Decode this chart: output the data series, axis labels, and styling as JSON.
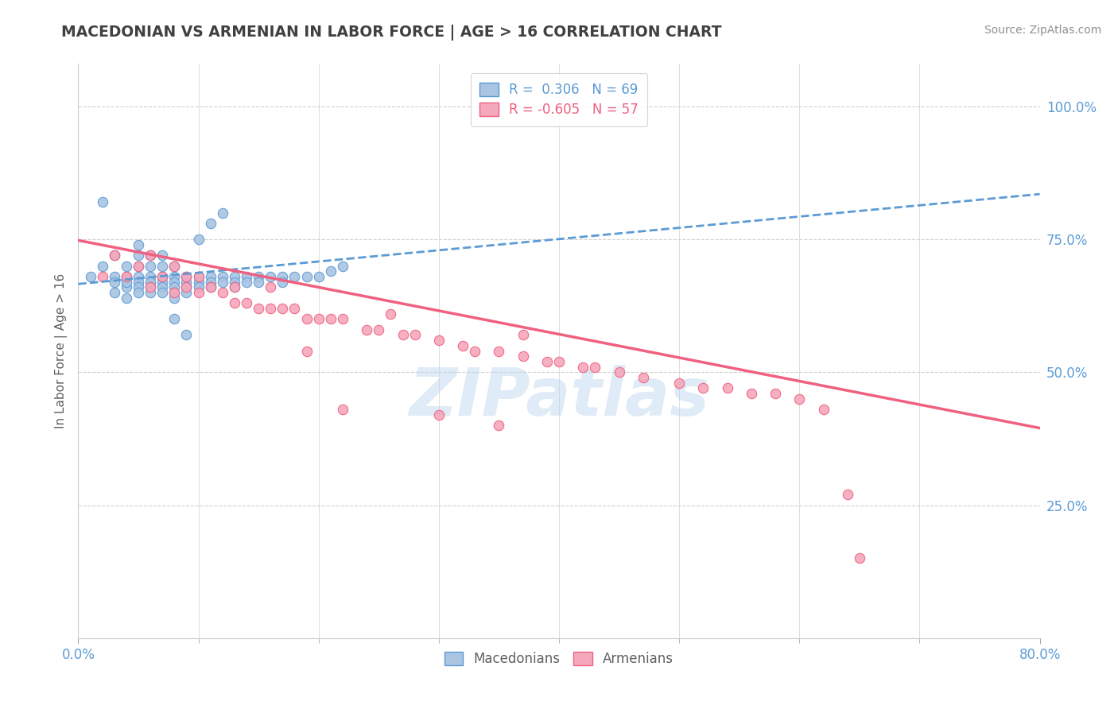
{
  "title": "MACEDONIAN VS ARMENIAN IN LABOR FORCE | AGE > 16 CORRELATION CHART",
  "source": "Source: ZipAtlas.com",
  "ylabel": "In Labor Force | Age > 16",
  "xlim": [
    0.0,
    0.8
  ],
  "ylim": [
    0.0,
    1.08
  ],
  "mac_color": "#aac4e2",
  "arm_color": "#f5a8bb",
  "mac_edge_color": "#5b9bd5",
  "arm_edge_color": "#f06080",
  "mac_line_color": "#5b9bd5",
  "arm_line_color": "#f06080",
  "watermark": "ZIPatlas",
  "background_color": "#ffffff",
  "grid_color": "#d0d0d0",
  "title_color": "#404040",
  "axis_label_color": "#5b9bd5",
  "mac_scatter_x": [
    0.01,
    0.02,
    0.02,
    0.03,
    0.03,
    0.03,
    0.03,
    0.04,
    0.04,
    0.04,
    0.04,
    0.04,
    0.05,
    0.05,
    0.05,
    0.05,
    0.05,
    0.05,
    0.05,
    0.06,
    0.06,
    0.06,
    0.06,
    0.06,
    0.06,
    0.07,
    0.07,
    0.07,
    0.07,
    0.07,
    0.07,
    0.08,
    0.08,
    0.08,
    0.08,
    0.08,
    0.08,
    0.09,
    0.09,
    0.09,
    0.09,
    0.1,
    0.1,
    0.1,
    0.1,
    0.11,
    0.11,
    0.11,
    0.11,
    0.12,
    0.12,
    0.12,
    0.13,
    0.13,
    0.13,
    0.14,
    0.14,
    0.15,
    0.15,
    0.16,
    0.17,
    0.17,
    0.18,
    0.19,
    0.2,
    0.21,
    0.22,
    0.08,
    0.09
  ],
  "mac_scatter_y": [
    0.68,
    0.82,
    0.7,
    0.72,
    0.68,
    0.65,
    0.67,
    0.68,
    0.66,
    0.7,
    0.67,
    0.64,
    0.68,
    0.67,
    0.66,
    0.65,
    0.7,
    0.72,
    0.74,
    0.68,
    0.67,
    0.66,
    0.65,
    0.7,
    0.72,
    0.68,
    0.67,
    0.66,
    0.65,
    0.7,
    0.72,
    0.68,
    0.67,
    0.66,
    0.65,
    0.7,
    0.64,
    0.68,
    0.67,
    0.66,
    0.65,
    0.68,
    0.67,
    0.66,
    0.75,
    0.68,
    0.67,
    0.66,
    0.78,
    0.68,
    0.67,
    0.8,
    0.68,
    0.67,
    0.66,
    0.68,
    0.67,
    0.68,
    0.67,
    0.68,
    0.68,
    0.67,
    0.68,
    0.68,
    0.68,
    0.69,
    0.7,
    0.6,
    0.57
  ],
  "arm_scatter_x": [
    0.02,
    0.03,
    0.04,
    0.05,
    0.06,
    0.06,
    0.07,
    0.08,
    0.08,
    0.09,
    0.09,
    0.1,
    0.1,
    0.11,
    0.12,
    0.13,
    0.13,
    0.14,
    0.15,
    0.16,
    0.16,
    0.17,
    0.18,
    0.19,
    0.2,
    0.21,
    0.22,
    0.24,
    0.25,
    0.27,
    0.28,
    0.3,
    0.32,
    0.33,
    0.35,
    0.37,
    0.37,
    0.39,
    0.4,
    0.42,
    0.43,
    0.45,
    0.47,
    0.5,
    0.52,
    0.54,
    0.56,
    0.58,
    0.6,
    0.62,
    0.19,
    0.22,
    0.26,
    0.3,
    0.35,
    0.64,
    0.65
  ],
  "arm_scatter_y": [
    0.68,
    0.72,
    0.68,
    0.7,
    0.66,
    0.72,
    0.68,
    0.7,
    0.65,
    0.68,
    0.66,
    0.68,
    0.65,
    0.66,
    0.65,
    0.63,
    0.66,
    0.63,
    0.62,
    0.62,
    0.66,
    0.62,
    0.62,
    0.6,
    0.6,
    0.6,
    0.6,
    0.58,
    0.58,
    0.57,
    0.57,
    0.56,
    0.55,
    0.54,
    0.54,
    0.53,
    0.57,
    0.52,
    0.52,
    0.51,
    0.51,
    0.5,
    0.49,
    0.48,
    0.47,
    0.47,
    0.46,
    0.46,
    0.45,
    0.43,
    0.54,
    0.43,
    0.61,
    0.42,
    0.4,
    0.27,
    0.15
  ],
  "mac_line_x": [
    0.0,
    0.8
  ],
  "mac_line_y": [
    0.666,
    0.835
  ],
  "arm_line_x": [
    0.0,
    0.8
  ],
  "arm_line_y": [
    0.748,
    0.395
  ]
}
